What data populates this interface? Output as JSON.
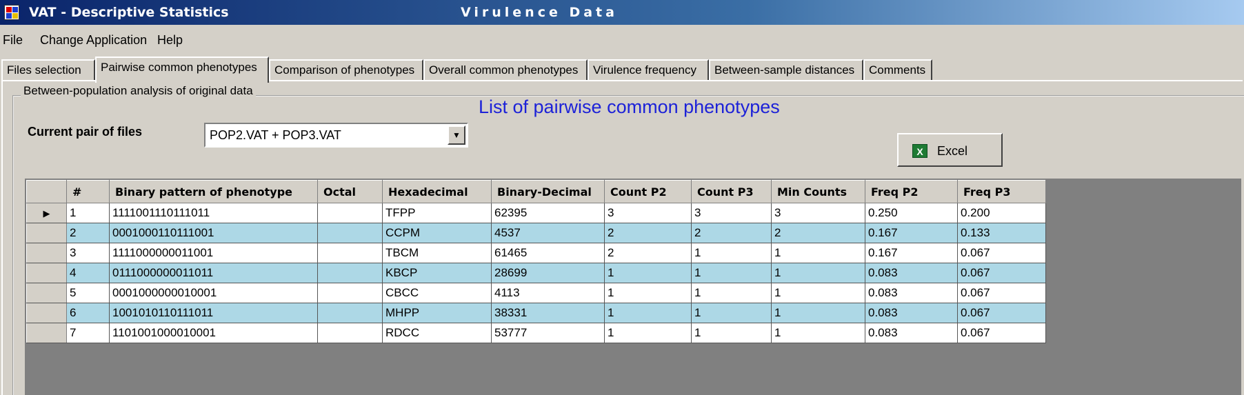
{
  "window": {
    "title": "VAT  -  Descriptive Statistics",
    "subtitle": "Virulence Data"
  },
  "menu": [
    "File",
    "Change Application",
    "Help"
  ],
  "tabs": [
    "Files selection",
    "Pairwise common phenotypes",
    "Comparison of phenotypes",
    "Overall common phenotypes",
    "Virulence frequency",
    "Between-sample distances",
    "Comments"
  ],
  "active_tab": "Pairwise common phenotypes",
  "group": {
    "legend": "Between-population analysis of original data",
    "list_title": "List of pairwise common phenotypes",
    "pair_label": "Current pair of files",
    "pair_value": "POP2.VAT + POP3.VAT",
    "excel_label": "Excel"
  },
  "colors": {
    "accent_blue": "#1d22d8",
    "row_alt": "#add8e6"
  },
  "grid": {
    "columns": [
      "#",
      "Binary pattern of phenotype",
      "Octal",
      "Hexadecimal",
      "Binary-Decimal",
      "Count P2",
      "Count P3",
      "Min Counts",
      "Freq P2",
      "Freq P3"
    ],
    "rows": [
      [
        "1",
        "1111001110111011",
        "",
        "TFPP",
        "62395",
        "3",
        "3",
        "3",
        "0.250",
        "0.200"
      ],
      [
        "2",
        "0001000110111001",
        "",
        "CCPM",
        "4537",
        "2",
        "2",
        "2",
        "0.167",
        "0.133"
      ],
      [
        "3",
        "1111000000011001",
        "",
        "TBCM",
        "61465",
        "2",
        "1",
        "1",
        "0.167",
        "0.067"
      ],
      [
        "4",
        "0111000000011011",
        "",
        "KBCP",
        "28699",
        "1",
        "1",
        "1",
        "0.083",
        "0.067"
      ],
      [
        "5",
        "0001000000010001",
        "",
        "CBCC",
        "4113",
        "1",
        "1",
        "1",
        "0.083",
        "0.067"
      ],
      [
        "6",
        "1001010110111011",
        "",
        "MHPP",
        "38331",
        "1",
        "1",
        "1",
        "0.083",
        "0.067"
      ],
      [
        "7",
        "1101001000010001",
        "",
        "RDCC",
        "53777",
        "1",
        "1",
        "1",
        "0.083",
        "0.067"
      ]
    ]
  }
}
